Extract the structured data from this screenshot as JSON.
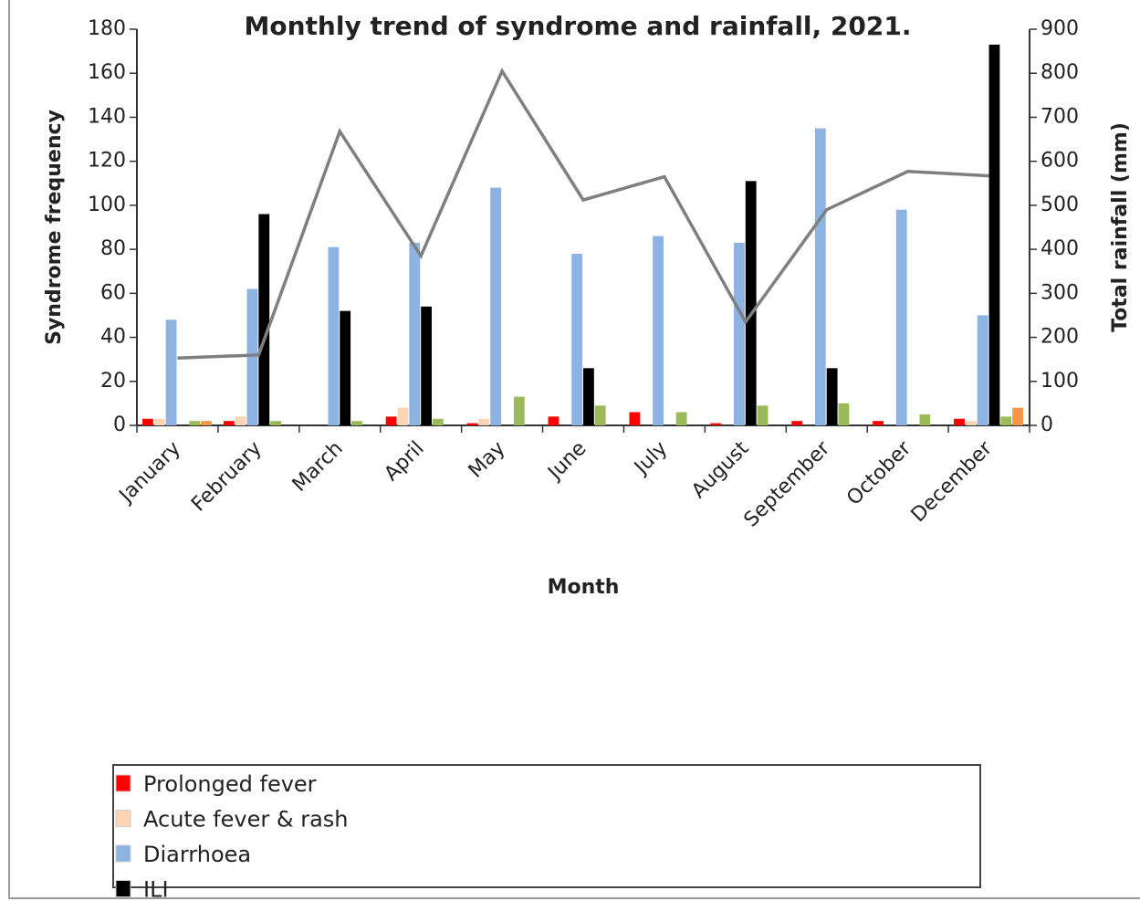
{
  "chart_data": {
    "type": "bar",
    "title": "Monthly trend of syndrome and rainfall, 2021.",
    "x_label": "Month",
    "y_label": "Syndrome frequency",
    "y2_label": "Total rainfall (mm)",
    "categories": [
      "January",
      "February",
      "March",
      "April",
      "May",
      "June",
      "July",
      "August",
      "September",
      "October",
      "December"
    ],
    "series": [
      {
        "name": "Prolonged fever",
        "color": "#ff0000",
        "values": [
          3,
          2,
          0,
          4,
          1,
          4,
          6,
          1,
          2,
          2,
          3
        ]
      },
      {
        "name": "Acute fever & rash",
        "color": "#fcd5b5",
        "values": [
          3,
          4,
          0,
          8,
          3,
          0,
          0,
          0,
          0,
          0,
          2
        ]
      },
      {
        "name": "Diarrhoea",
        "color": "#8db3e2",
        "values": [
          48,
          62,
          81,
          83,
          108,
          78,
          86,
          83,
          135,
          98,
          50
        ]
      },
      {
        "name": "ILI",
        "color": "#000000",
        "values": [
          0,
          96,
          52,
          54,
          0,
          26,
          0,
          111,
          26,
          0,
          173
        ]
      },
      {
        "color": "#9bbb59",
        "values": [
          2,
          2,
          2,
          3,
          13,
          9,
          6,
          9,
          10,
          5,
          4
        ]
      },
      {
        "color": "#f79646",
        "values": [
          2,
          0,
          0,
          0,
          0,
          0,
          0,
          0,
          0,
          0,
          8
        ]
      },
      {
        "type": "line",
        "axis": "y2",
        "color": "#7f7f7f",
        "values": [
          153,
          160,
          668,
          385,
          805,
          512,
          565,
          235,
          490,
          577,
          567
        ]
      }
    ],
    "ylim": [
      0,
      180
    ],
    "yticks": [
      0,
      20,
      40,
      60,
      80,
      100,
      120,
      140,
      160,
      180
    ],
    "y2lim": [
      0,
      900
    ],
    "y2ticks": [
      0,
      100,
      200,
      300,
      400,
      500,
      600,
      700,
      800,
      900
    ],
    "grid": false,
    "legend": "bottom"
  }
}
